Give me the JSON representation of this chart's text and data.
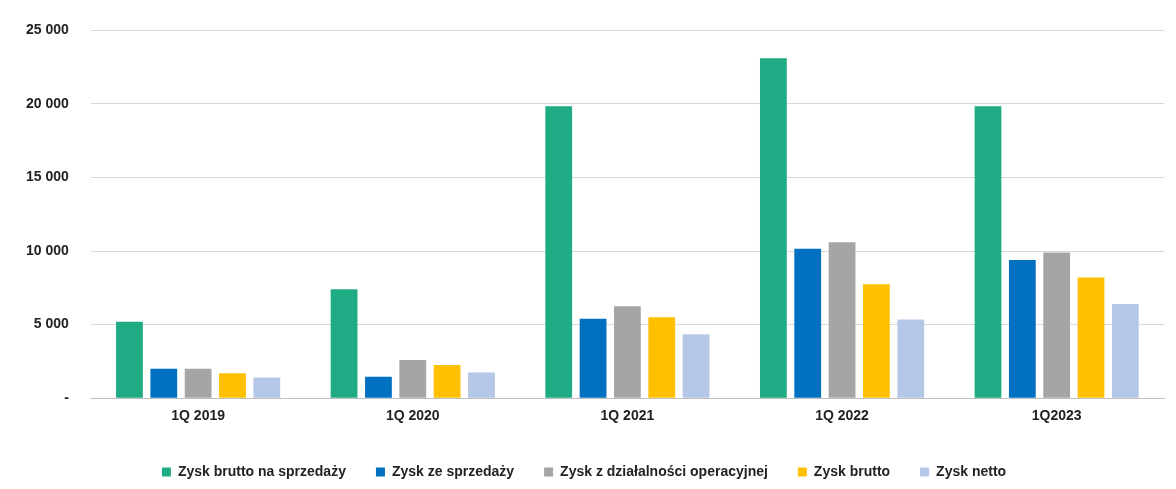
{
  "chart_data": {
    "type": "bar",
    "categories": [
      "1Q 2019",
      "1Q 2020",
      "1Q 2021",
      "1Q 2022",
      "1Q2023"
    ],
    "series": [
      {
        "name": "Zysk brutto na sprzedaży",
        "color": "#1fab84",
        "values": [
          5200,
          7400,
          19850,
          23100,
          19850
        ]
      },
      {
        "name": "Zysk ze sprzedaży",
        "color": "#0070c0",
        "values": [
          2000,
          1450,
          5400,
          10150,
          9400
        ]
      },
      {
        "name": "Zysk z działalności operacyjnej",
        "color": "#a5a5a5",
        "values": [
          2000,
          2600,
          6250,
          10600,
          9900
        ]
      },
      {
        "name": "Zysk brutto",
        "color": "#ffc000",
        "values": [
          1700,
          2250,
          5500,
          7750,
          8200
        ]
      },
      {
        "name": "Zysk netto",
        "color": "#b4c7e7",
        "values": [
          1400,
          1750,
          4350,
          5350,
          6400
        ]
      }
    ],
    "ylim": [
      0,
      25000
    ],
    "yticks": [
      {
        "value": 0,
        "label": "-"
      },
      {
        "value": 5000,
        "label": "5 000"
      },
      {
        "value": 10000,
        "label": "10 000"
      },
      {
        "value": 15000,
        "label": "15 000"
      },
      {
        "value": 20000,
        "label": "20 000"
      },
      {
        "value": 25000,
        "label": "25 000"
      }
    ],
    "grid": "y",
    "legend": "bottom"
  }
}
